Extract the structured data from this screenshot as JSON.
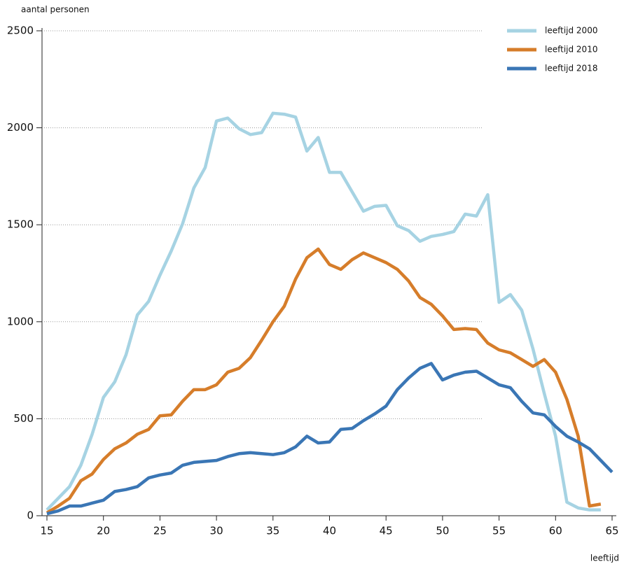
{
  "chart_data": {
    "type": "line",
    "y_label": "aantal personen",
    "x_label": "leeftijd",
    "x": [
      15,
      16,
      17,
      18,
      19,
      20,
      21,
      22,
      23,
      24,
      25,
      26,
      27,
      28,
      29,
      30,
      31,
      32,
      33,
      34,
      35,
      36,
      37,
      38,
      39,
      40,
      41,
      42,
      43,
      44,
      45,
      46,
      47,
      48,
      49,
      50,
      51,
      52,
      53,
      54,
      55,
      56,
      57,
      58,
      59,
      60,
      61,
      62,
      63,
      64,
      65
    ],
    "series": [
      {
        "name": "leeftijd 2000",
        "color": "#a6d3e3",
        "values": [
          30,
          90,
          150,
          260,
          420,
          610,
          690,
          830,
          1035,
          1105,
          1240,
          1365,
          1505,
          1690,
          1795,
          2035,
          2050,
          1995,
          1965,
          1975,
          2075,
          2070,
          2055,
          1880,
          1950,
          1770,
          1770,
          1670,
          1570,
          1595,
          1600,
          1495,
          1470,
          1415,
          1440,
          1450,
          1465,
          1555,
          1545,
          1655,
          1100,
          1140,
          1060,
          860,
          630,
          410,
          70,
          40,
          30,
          30,
          null
        ]
      },
      {
        "name": "leeftijd 2010",
        "color": "#d67d2a",
        "values": [
          15,
          50,
          90,
          180,
          215,
          290,
          345,
          375,
          420,
          445,
          515,
          520,
          590,
          650,
          650,
          675,
          740,
          760,
          815,
          905,
          1000,
          1080,
          1220,
          1330,
          1375,
          1295,
          1270,
          1320,
          1355,
          1330,
          1305,
          1270,
          1210,
          1125,
          1090,
          1030,
          960,
          965,
          960,
          890,
          855,
          840,
          805,
          770,
          805,
          740,
          600,
          410,
          50,
          60,
          null
        ]
      },
      {
        "name": "leeftijd 2018",
        "color": "#3a76b5",
        "values": [
          10,
          25,
          50,
          50,
          65,
          80,
          125,
          135,
          150,
          195,
          210,
          220,
          260,
          275,
          280,
          285,
          305,
          320,
          325,
          320,
          315,
          325,
          355,
          410,
          375,
          380,
          445,
          450,
          490,
          525,
          565,
          650,
          710,
          760,
          785,
          700,
          725,
          740,
          745,
          710,
          675,
          660,
          590,
          530,
          520,
          460,
          410,
          380,
          345,
          285,
          225
        ]
      }
    ],
    "xlim": [
      15,
      65
    ],
    "xticks": [
      15,
      20,
      25,
      30,
      35,
      40,
      45,
      50,
      55,
      60,
      65
    ],
    "ylim": [
      0,
      2500
    ],
    "yticks": [
      0,
      500,
      1000,
      1500,
      2000,
      2500
    ],
    "grid": true,
    "legend": "top-right"
  }
}
